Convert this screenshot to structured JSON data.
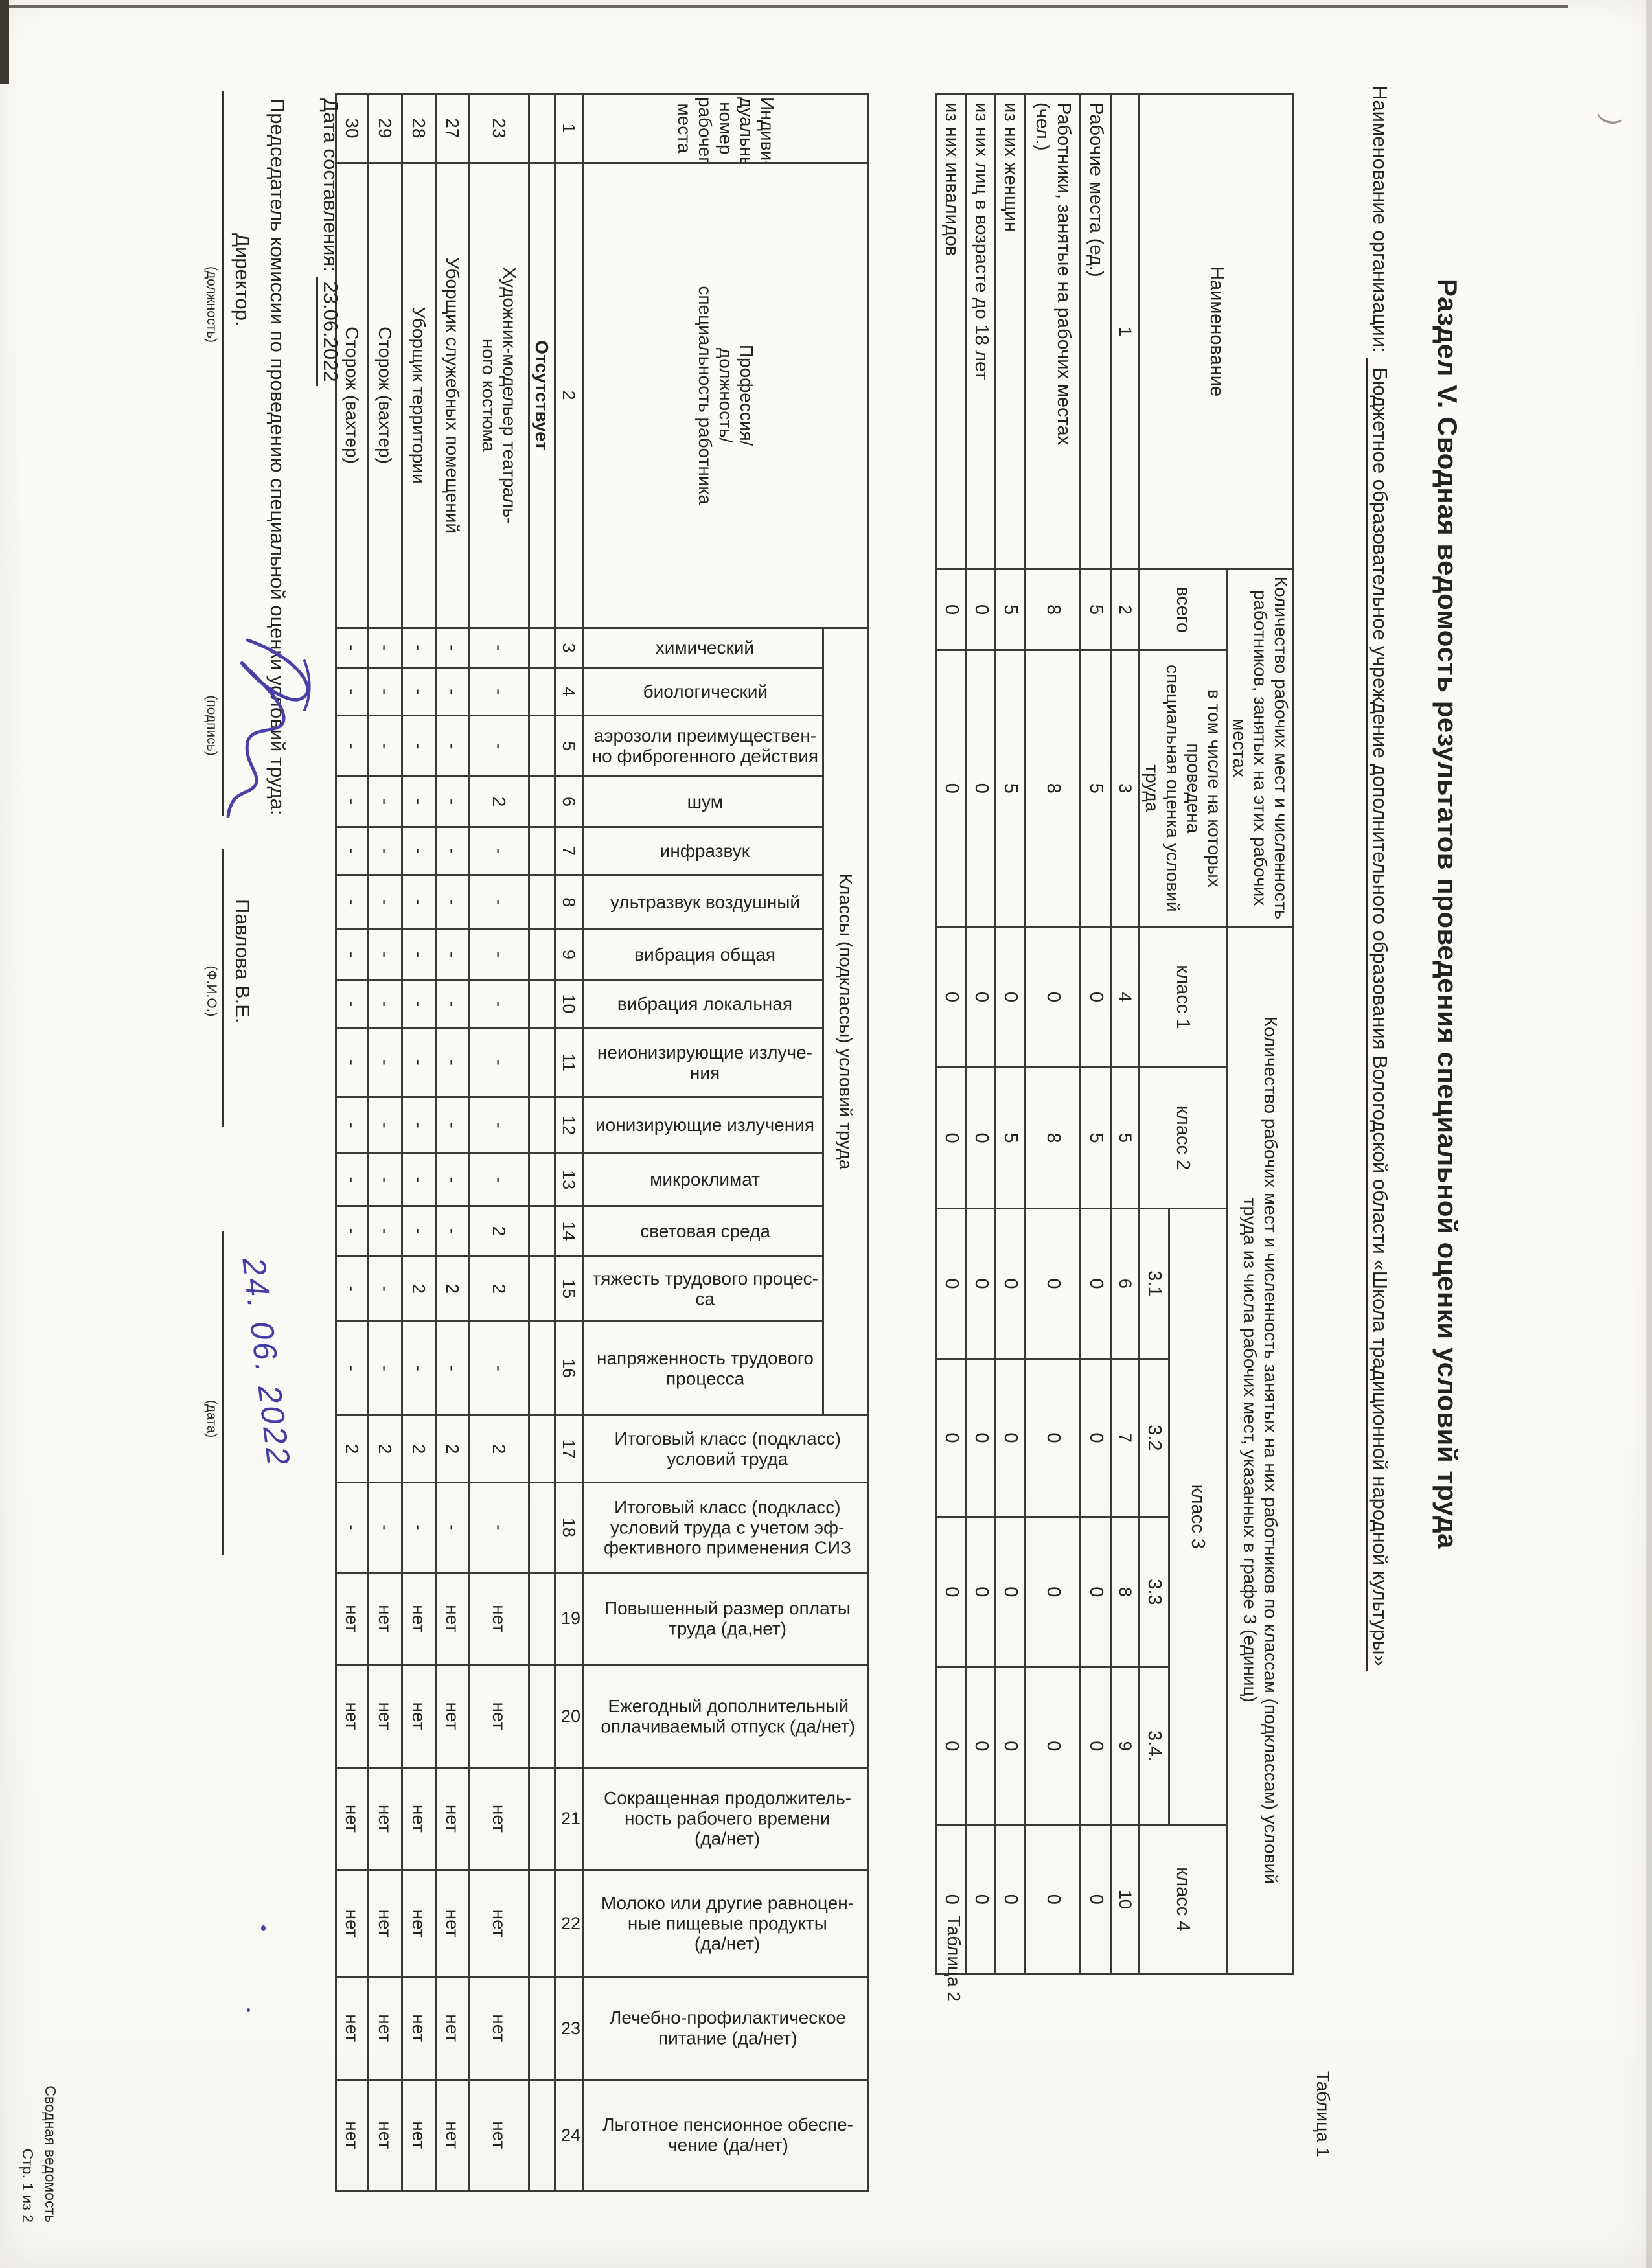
{
  "title": "Раздел V. Сводная ведомость результатов проведения специальной оценки условий труда",
  "org": {
    "label": "Наименование организации:",
    "value": "Бюджетное образовательное учреждение дополнительного образования Вологодской области  «Школа традиционной народной культуры»"
  },
  "table1": {
    "label": "Таблица 1",
    "headers": {
      "name": "Наименование",
      "group_places": "Количество рабочих мест и численность\nработников, занятых на этих рабочих местах",
      "total": "всего",
      "evaluated": "в том числе на которых проведена\nспециальная оценка условий труда",
      "group_classes": "Количество рабочих мест и численность занятых на них работников по классам (подклассам) условий\nтруда из числа рабочих мест, указанных в графе 3 (единиц)",
      "class1": "класс 1",
      "class2": "класс 2",
      "class3": "класс 3",
      "class4": "класс 4",
      "sub31": "3.1",
      "sub32": "3.2",
      "sub33": "3.3",
      "sub34": "3.4."
    },
    "numbering": [
      "1",
      "2",
      "3",
      "4",
      "5",
      "6",
      "7",
      "8",
      "9",
      "10"
    ],
    "rows": [
      {
        "name": "Рабочие места (ед.)",
        "values": [
          "5",
          "5",
          "0",
          "5",
          "0",
          "0",
          "0",
          "0",
          "0"
        ]
      },
      {
        "name": "Работники, занятые на рабочих местах\n(чел.)",
        "values": [
          "8",
          "8",
          "0",
          "8",
          "0",
          "0",
          "0",
          "0",
          "0"
        ]
      },
      {
        "name": "из них женщин",
        "values": [
          "5",
          "5",
          "0",
          "5",
          "0",
          "0",
          "0",
          "0",
          "0"
        ]
      },
      {
        "name": "из них лиц в возрасте до 18 лет",
        "values": [
          "0",
          "0",
          "0",
          "0",
          "0",
          "0",
          "0",
          "0",
          "0"
        ]
      },
      {
        "name": "из них инвалидов",
        "values": [
          "0",
          "0",
          "0",
          "0",
          "0",
          "0",
          "0",
          "0",
          "0"
        ]
      }
    ]
  },
  "table2": {
    "label": "Таблица 2",
    "headers": {
      "col1": "Индиви-\nдуальный\nномер\nрабочего\nместа",
      "col2": "Профессия/\nдолжность/\nспециальность работника",
      "group": "Классы (подклассы) условий труда",
      "factors": [
        "химический",
        "биологический",
        "аэрозоли преимуществен-\nно фиброгенного действия",
        "шум",
        "инфразвук",
        "ультразвук воздушный",
        "вибрация общая",
        "вибрация локальная",
        "неионизирующие излуче-\nния",
        "ионизирующие излучения",
        "микроклимат",
        "световая среда",
        "тяжесть трудового процес-\nса",
        "напряженность трудового\nпроцесса"
      ],
      "right_cols": [
        "Итоговый класс (подкласс)\nусловий труда",
        "Итоговый класс (подкласс)\nусловий труда с учетом эф-\nфективного применения СИЗ",
        "Повышенный размер оплаты\nтруда (да,нет)",
        "Ежегодный дополнительный\nоплачиваемый отпуск (да/нет)",
        "Сокращенная продолжитель-\nность рабочего времени\n(да/нет)",
        "Молоко или другие равноцен-\nные пищевые продукты\n(да/нет)",
        "Лечебно-профилактическое\nпитание  (да/нет)",
        "Льготное пенсионное обеспе-\nчение (да/нет)"
      ]
    },
    "numbering": [
      "1",
      "2",
      "3",
      "4",
      "5",
      "6",
      "7",
      "8",
      "9",
      "10",
      "11",
      "12",
      "13",
      "14",
      "15",
      "16",
      "17",
      "18",
      "19",
      "20",
      "21",
      "22",
      "23",
      "24"
    ],
    "section_row": "Отсутствует",
    "rows": [
      {
        "num": "23",
        "profession": "Художник-модельер театраль-\nного костюма",
        "values": [
          "-",
          "-",
          "-",
          "2",
          "-",
          "-",
          "-",
          "-",
          "-",
          "-",
          "-",
          "2",
          "2",
          "-",
          "2",
          "-",
          "нет",
          "нет",
          "нет",
          "нет",
          "нет",
          "нет"
        ]
      },
      {
        "num": "27",
        "profession": "Уборщик служебных помещений",
        "values": [
          "-",
          "-",
          "-",
          "-",
          "-",
          "-",
          "-",
          "-",
          "-",
          "-",
          "-",
          "-",
          "2",
          "-",
          "2",
          "-",
          "нет",
          "нет",
          "нет",
          "нет",
          "нет",
          "нет"
        ]
      },
      {
        "num": "28",
        "profession": "Уборщик территории",
        "values": [
          "-",
          "-",
          "-",
          "-",
          "-",
          "-",
          "-",
          "-",
          "-",
          "-",
          "-",
          "-",
          "2",
          "-",
          "2",
          "-",
          "нет",
          "нет",
          "нет",
          "нет",
          "нет",
          "нет"
        ]
      },
      {
        "num": "29",
        "profession": "Сторож (вахтер)",
        "values": [
          "-",
          "-",
          "-",
          "-",
          "-",
          "-",
          "-",
          "-",
          "-",
          "-",
          "-",
          "-",
          "-",
          "-",
          "2",
          "-",
          "нет",
          "нет",
          "нет",
          "нет",
          "нет",
          "нет"
        ]
      },
      {
        "num": "30",
        "profession": "Сторож (вахтер)",
        "values": [
          "-",
          "-",
          "-",
          "-",
          "-",
          "-",
          "-",
          "-",
          "-",
          "-",
          "-",
          "-",
          "-",
          "-",
          "2",
          "-",
          "нет",
          "нет",
          "нет",
          "нет",
          "нет",
          "нет"
        ]
      }
    ]
  },
  "signature": {
    "compiled_label": "Дата составления:",
    "compiled_date": "23.06.2022",
    "chairman": "Председатель комиссии по проведению специальной оценки условий труда:",
    "position_value": "Директор.",
    "position_caption": "(должность)",
    "sign_caption": "(подпись)",
    "fio_value": "Павлова В.Е.",
    "fio_caption": "(Ф.И.О.)",
    "handwritten_date": "24. 06. 2022",
    "date_caption": "(дата)"
  },
  "footer": {
    "line1": "Сводная ведомость",
    "line2": "Стр. 1 из 2"
  }
}
